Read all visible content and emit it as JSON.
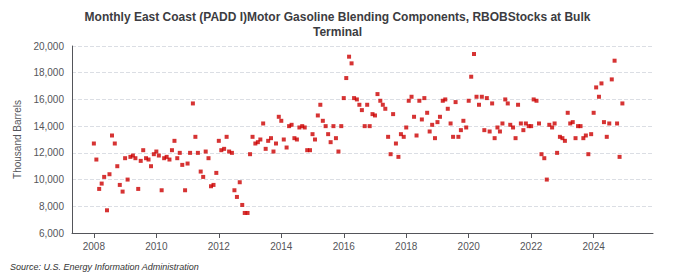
{
  "chart_data": {
    "type": "scatter",
    "title": "Monthly East Coast (PADD I)Motor Gasoline Blending Components, RBOBStocks at Bulk\nTerminal",
    "ylabel": "Thousand Barrels",
    "source": "Source: U.S. Energy Information Administration",
    "color": "#cc0000",
    "marker": "square",
    "grid": true,
    "xlim": [
      2007.3,
      2025.9
    ],
    "xticks": [
      2008,
      2010,
      2012,
      2014,
      2016,
      2018,
      2020,
      2022,
      2024
    ],
    "ylim": [
      6000,
      20000
    ],
    "yticks": [
      {
        "value": 6000,
        "label": "6,000"
      },
      {
        "value": 8000,
        "label": "8,000"
      },
      {
        "value": 10000,
        "label": "10,000"
      },
      {
        "value": 12000,
        "label": "12,000"
      },
      {
        "value": 14000,
        "label": "14,000"
      },
      {
        "value": 16000,
        "label": "16,000"
      },
      {
        "value": 18000,
        "label": "18,000"
      },
      {
        "value": 20000,
        "label": "20,000"
      }
    ],
    "x": [
      2008.0,
      2008.08,
      2008.17,
      2008.25,
      2008.33,
      2008.42,
      2008.5,
      2008.58,
      2008.67,
      2008.75,
      2008.83,
      2008.92,
      2009.0,
      2009.08,
      2009.17,
      2009.25,
      2009.33,
      2009.42,
      2009.5,
      2009.58,
      2009.67,
      2009.75,
      2009.83,
      2009.92,
      2010.0,
      2010.08,
      2010.17,
      2010.25,
      2010.33,
      2010.42,
      2010.5,
      2010.58,
      2010.67,
      2010.75,
      2010.83,
      2010.92,
      2011.0,
      2011.08,
      2011.17,
      2011.25,
      2011.33,
      2011.42,
      2011.5,
      2011.58,
      2011.67,
      2011.75,
      2011.83,
      2011.92,
      2012.0,
      2012.08,
      2012.17,
      2012.25,
      2012.33,
      2012.42,
      2012.5,
      2012.58,
      2012.67,
      2012.75,
      2012.83,
      2012.92,
      2013.0,
      2013.08,
      2013.17,
      2013.25,
      2013.33,
      2013.42,
      2013.5,
      2013.58,
      2013.67,
      2013.75,
      2013.83,
      2013.92,
      2014.0,
      2014.08,
      2014.17,
      2014.25,
      2014.33,
      2014.42,
      2014.5,
      2014.58,
      2014.67,
      2014.75,
      2014.83,
      2014.92,
      2015.0,
      2015.08,
      2015.17,
      2015.25,
      2015.33,
      2015.42,
      2015.5,
      2015.58,
      2015.67,
      2015.75,
      2015.83,
      2015.92,
      2016.0,
      2016.08,
      2016.17,
      2016.25,
      2016.33,
      2016.42,
      2016.5,
      2016.58,
      2016.67,
      2016.75,
      2016.83,
      2016.92,
      2017.0,
      2017.08,
      2017.17,
      2017.25,
      2017.33,
      2017.42,
      2017.5,
      2017.58,
      2017.67,
      2017.75,
      2017.83,
      2017.92,
      2018.0,
      2018.08,
      2018.17,
      2018.25,
      2018.33,
      2018.42,
      2018.5,
      2018.58,
      2018.67,
      2018.75,
      2018.83,
      2018.92,
      2019.0,
      2019.08,
      2019.17,
      2019.25,
      2019.33,
      2019.42,
      2019.5,
      2019.58,
      2019.67,
      2019.75,
      2019.83,
      2019.92,
      2020.0,
      2020.08,
      2020.17,
      2020.25,
      2020.33,
      2020.42,
      2020.5,
      2020.58,
      2020.67,
      2020.75,
      2020.83,
      2020.92,
      2021.0,
      2021.08,
      2021.17,
      2021.25,
      2021.33,
      2021.42,
      2021.5,
      2021.58,
      2021.67,
      2021.75,
      2021.83,
      2021.92,
      2022.0,
      2022.08,
      2022.17,
      2022.25,
      2022.33,
      2022.42,
      2022.5,
      2022.58,
      2022.67,
      2022.75,
      2022.83,
      2022.92,
      2023.0,
      2023.08,
      2023.17,
      2023.25,
      2023.33,
      2023.42,
      2023.5,
      2023.58,
      2023.67,
      2023.75,
      2023.83,
      2023.92,
      2024.0,
      2024.08,
      2024.17,
      2024.25,
      2024.33,
      2024.42,
      2024.5,
      2024.58,
      2024.67,
      2024.75,
      2024.83,
      2024.92
    ],
    "values": [
      12700,
      11500,
      9300,
      9700,
      10200,
      7700,
      10400,
      13300,
      12700,
      11000,
      9600,
      9100,
      11600,
      10000,
      11700,
      11800,
      11600,
      9300,
      11400,
      12200,
      11600,
      11500,
      11000,
      11900,
      12100,
      11800,
      9200,
      11600,
      11700,
      11500,
      12200,
      12900,
      11600,
      12000,
      11100,
      9200,
      11200,
      12000,
      15700,
      13200,
      12000,
      10600,
      10200,
      12100,
      11600,
      9500,
      9600,
      10500,
      12900,
      12200,
      12300,
      13200,
      12100,
      12000,
      9200,
      8700,
      9800,
      8100,
      7500,
      7500,
      11900,
      13200,
      12700,
      12800,
      13000,
      14200,
      12300,
      12900,
      13100,
      12100,
      12700,
      14700,
      14400,
      13000,
      12400,
      14000,
      14100,
      13100,
      13000,
      13900,
      14000,
      13900,
      12200,
      12200,
      13400,
      13000,
      14800,
      15600,
      14400,
      14000,
      13400,
      12800,
      14000,
      13100,
      12100,
      14000,
      16100,
      17600,
      19200,
      18700,
      16100,
      16000,
      15600,
      15200,
      14000,
      15600,
      14000,
      14900,
      14800,
      16400,
      15900,
      15600,
      15300,
      13200,
      11900,
      14900,
      12700,
      11700,
      13400,
      13200,
      13900,
      15900,
      16200,
      14700,
      13300,
      15900,
      14500,
      16100,
      15000,
      13600,
      14100,
      13100,
      14300,
      14700,
      15900,
      16000,
      15300,
      14200,
      13200,
      15800,
      13200,
      13700,
      14400,
      13900,
      15900,
      17700,
      19400,
      16200,
      15600,
      16200,
      13700,
      16100,
      13600,
      15700,
      13100,
      13900,
      13600,
      14200,
      16000,
      15700,
      14100,
      13900,
      13100,
      15600,
      14200,
      13700,
      14200,
      14000,
      14000,
      16000,
      15900,
      14200,
      11900,
      11600,
      10000,
      14100,
      13900,
      14200,
      12000,
      13200,
      13100,
      12900,
      15000,
      14200,
      14300,
      13100,
      14000,
      14000,
      13100,
      13300,
      11900,
      13400,
      15000,
      16900,
      16200,
      17200,
      14300,
      13200,
      14200,
      17500,
      18900,
      14200,
      11700,
      15700
    ]
  }
}
